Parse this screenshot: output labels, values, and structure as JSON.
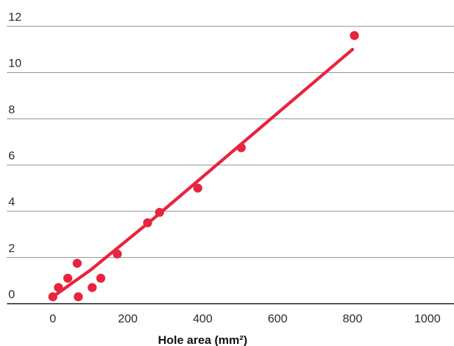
{
  "chart_data": {
    "type": "scatter",
    "xlabel": "Hole area (mm²)",
    "ylabel": "",
    "xlim": [
      -30,
      1040
    ],
    "ylim": [
      0,
      12
    ],
    "x_ticks": [
      0,
      200,
      400,
      600,
      800,
      1000
    ],
    "y_ticks": [
      0,
      2,
      4,
      6,
      8,
      10,
      12
    ],
    "grid": "horizontal",
    "colors": {
      "points": "#e8243e",
      "trend": "#e8243e",
      "grid": "#8a8a8a",
      "axis": "#111111"
    },
    "series": [
      {
        "points": [
          {
            "x": 0,
            "y": 0.3
          },
          {
            "x": 15,
            "y": 0.7
          },
          {
            "x": 40,
            "y": 1.1
          },
          {
            "x": 65,
            "y": 1.75
          },
          {
            "x": 68,
            "y": 0.3
          },
          {
            "x": 105,
            "y": 0.7
          },
          {
            "x": 128,
            "y": 1.1
          },
          {
            "x": 172,
            "y": 2.15
          },
          {
            "x": 253,
            "y": 3.5
          },
          {
            "x": 285,
            "y": 3.95
          },
          {
            "x": 387,
            "y": 5.0
          },
          {
            "x": 503,
            "y": 6.75
          },
          {
            "x": 805,
            "y": 11.6
          }
        ]
      }
    ],
    "trendline": [
      {
        "x": 0,
        "y": 0.3
      },
      {
        "x": 100,
        "y": 1.45
      },
      {
        "x": 270,
        "y": 3.7
      },
      {
        "x": 800,
        "y": 11.0
      }
    ]
  }
}
